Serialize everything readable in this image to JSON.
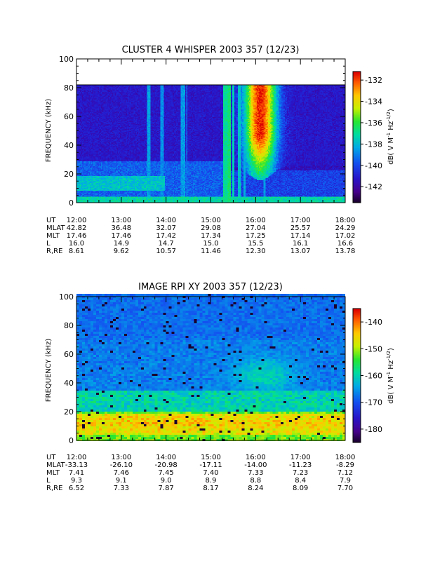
{
  "chart_data": [
    {
      "type": "heatmap",
      "title": "CLUSTER 4 WHISPER 2003 357 (12/23)",
      "ylabel": "FREQUENCY (kHz)",
      "xlim": [
        "12:00",
        "18:00"
      ],
      "ylim": [
        0,
        100
      ],
      "data_top_khz": 80,
      "yticks": [
        "0",
        "20",
        "40",
        "60",
        "80",
        "100"
      ],
      "colorbar": {
        "label": "dB( V M",
        "sup1": "-1",
        "mid": " Hz",
        "sup2": "-1/2",
        "tail": ")",
        "range": [
          -143.5,
          -131.2
        ],
        "ticks": [
          "-132",
          "-134",
          "-136",
          "-138",
          "-140",
          "-142"
        ],
        "tick_values": [
          -132,
          -134,
          -136,
          -138,
          -140,
          -142
        ]
      },
      "ephemeris": {
        "labels": [
          "UT",
          "MLAT",
          "MLT",
          "L",
          "R,RE"
        ],
        "rows": [
          [
            "12:00",
            "13:00",
            "14:00",
            "15:00",
            "16:00",
            "17:00",
            "18:00"
          ],
          [
            "42.82",
            "36.48",
            "32.07",
            "29.08",
            "27.04",
            "25.57",
            "24.29"
          ],
          [
            "17.46",
            "17.46",
            "17.42",
            "17.34",
            "17.25",
            "17.14",
            "17.02"
          ],
          [
            "16.0",
            "14.9",
            "14.7",
            "15.0",
            "15.5",
            "16.1",
            "16.6"
          ],
          [
            "8.61",
            "9.62",
            "10.57",
            "11.46",
            "12.30",
            "13.07",
            "13.78"
          ]
        ]
      },
      "features": {
        "background_db": -141.5,
        "bands": [
          {
            "t_start": 0.0,
            "t_end": 0.55,
            "f_low": 0,
            "f_high": 28,
            "db": -139.6
          },
          {
            "t_start": 0.0,
            "t_end": 0.33,
            "f_low": 8,
            "f_high": 18,
            "db": -137.8
          },
          {
            "t_start": 0.0,
            "t_end": 1.0,
            "f_low": 0,
            "f_high": 4,
            "db": -137.2
          },
          {
            "t_start": 0.55,
            "t_end": 1.0,
            "f_low": 0,
            "f_high": 22,
            "db": -140.2
          }
        ],
        "streaks": [
          {
            "t": 0.268,
            "width": 0.006,
            "f_top": 80,
            "db": -138.5
          },
          {
            "t": 0.318,
            "width": 0.005,
            "f_top": 80,
            "db": -138.8
          },
          {
            "t": 0.395,
            "width": 0.008,
            "f_top": 80,
            "db": -138.6
          },
          {
            "t": 0.41,
            "width": 0.004,
            "f_top": 80,
            "db": -139.2
          },
          {
            "t": 0.555,
            "width": 0.01,
            "f_top": 80,
            "db": -137.0
          },
          {
            "t": 0.57,
            "width": 0.006,
            "f_top": 80,
            "db": -136.5
          },
          {
            "t": 0.585,
            "width": 0.004,
            "f_top": 80,
            "db": -137.5
          },
          {
            "t": 0.606,
            "width": 0.006,
            "f_top": 80,
            "db": -137.8
          },
          {
            "t": 0.625,
            "width": 0.005,
            "f_top": 80,
            "db": -138.2
          },
          {
            "t": 0.7,
            "width": 0.004,
            "f_top": 80,
            "db": -138.5
          }
        ],
        "storm": {
          "t_center": 0.685,
          "t_width": 0.06,
          "f_low": 25,
          "peak_db": -131.5
        }
      }
    },
    {
      "type": "heatmap",
      "title": "IMAGE RPI XY 2003 357 (12/23)",
      "ylabel": "FREQUENCY (kHz)",
      "xlim": [
        "12:00",
        "18:00"
      ],
      "ylim": [
        0,
        100
      ],
      "data_top_khz": 102,
      "yticks": [
        "0",
        "20",
        "40",
        "60",
        "80",
        "100"
      ],
      "colorbar": {
        "label": "dB( V M",
        "sup1": "-1",
        "mid": " Hz",
        "sup2": "-1/2",
        "tail": ")",
        "range": [
          -185,
          -135
        ],
        "ticks": [
          "-140",
          "-150",
          "-160",
          "-170",
          "-180"
        ],
        "tick_values": [
          -140,
          -150,
          -160,
          -170,
          -180
        ]
      },
      "ephemeris": {
        "labels": [
          "UT",
          "MLAT",
          "MLT",
          "L",
          "R,RE"
        ],
        "rows": [
          [
            "12:00",
            "13:00",
            "14:00",
            "15:00",
            "16:00",
            "17:00",
            "18:00"
          ],
          [
            "-33.13",
            "-26.10",
            "-20.98",
            "-17.11",
            "-14.00",
            "-11.23",
            "-8.29"
          ],
          [
            "7.41",
            "7.46",
            "7.45",
            "7.40",
            "7.33",
            "7.23",
            "7.12"
          ],
          [
            "9.3",
            "9.1",
            "9.0",
            "8.9",
            "8.8",
            "8.4",
            "7.9"
          ],
          [
            "6.52",
            "7.33",
            "7.87",
            "8.17",
            "8.24",
            "8.09",
            "7.70"
          ]
        ]
      },
      "features": {
        "upper_db": -180,
        "mid_db": -168,
        "lower_db": -152,
        "low_band_db": -145,
        "right_blob": {
          "t_center": 0.7,
          "f_center": 45,
          "db": -160
        }
      }
    }
  ]
}
